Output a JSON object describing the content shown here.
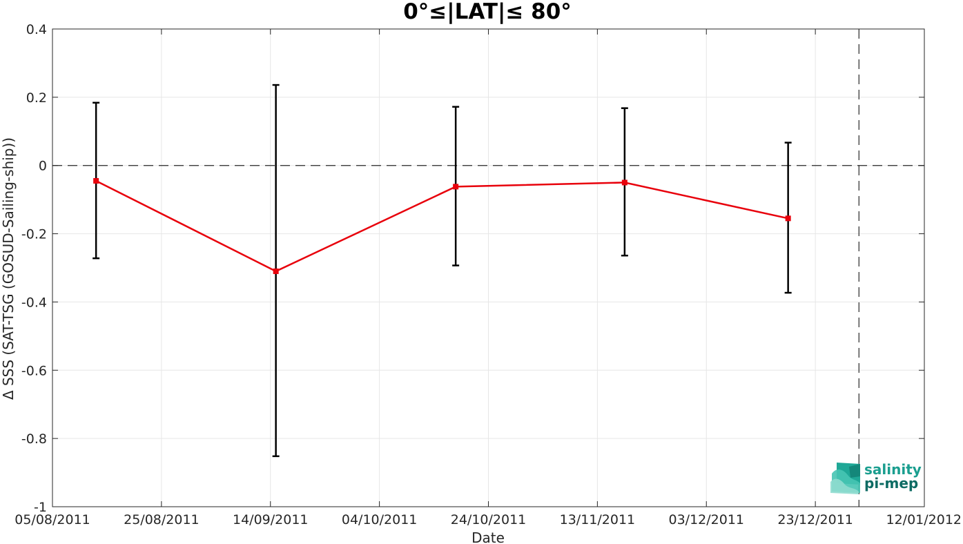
{
  "chart_data": {
    "type": "line",
    "title": "0°≤|LAT|≤ 80°",
    "xlabel": "Date",
    "ylabel": "Δ SSS (SAT-TSG (GOSUD-Sailing-ship))",
    "x_is_date": true,
    "xlim": [
      "2011-08-05",
      "2012-01-12"
    ],
    "ylim": [
      -1,
      0.4
    ],
    "x_ticks": [
      "2011-08-05",
      "2011-08-25",
      "2011-09-14",
      "2011-10-04",
      "2011-10-24",
      "2011-11-13",
      "2011-12-03",
      "2011-12-23",
      "2012-01-12"
    ],
    "x_tick_labels": [
      "05/08/2011",
      "25/08/2011",
      "14/09/2011",
      "04/10/2011",
      "24/10/2011",
      "13/11/2011",
      "03/12/2011",
      "23/12/2011",
      "12/01/2012"
    ],
    "y_ticks": [
      0.4,
      0.2,
      0,
      -0.2,
      -0.4,
      -0.6,
      -0.8,
      -1
    ],
    "y_tick_labels": [
      "0.4",
      "0.2",
      "0",
      "-0.2",
      "-0.4",
      "-0.6",
      "-0.8",
      "-1"
    ],
    "grid": true,
    "reference_lines": [
      {
        "orientation": "horizontal",
        "value": 0,
        "style": "dashed"
      },
      {
        "orientation": "vertical",
        "value": "2011-12-31",
        "style": "dashed"
      }
    ],
    "series": [
      {
        "color": "#e8000b",
        "marker": "square",
        "x": [
          "2011-08-13",
          "2011-09-15",
          "2011-10-18",
          "2011-11-18",
          "2011-12-18"
        ],
        "y": [
          -0.045,
          -0.31,
          -0.062,
          -0.05,
          -0.155
        ],
        "err_low": [
          -0.272,
          -0.852,
          -0.293,
          -0.264,
          -0.373
        ],
        "err_high": [
          0.184,
          0.236,
          0.172,
          0.168,
          0.067
        ]
      }
    ],
    "errorbar_color": "#000000"
  },
  "logo": {
    "line1": "salinity",
    "line2": "pi-mep",
    "color1": "#1a9e8f",
    "color2": "#0d6b63"
  }
}
